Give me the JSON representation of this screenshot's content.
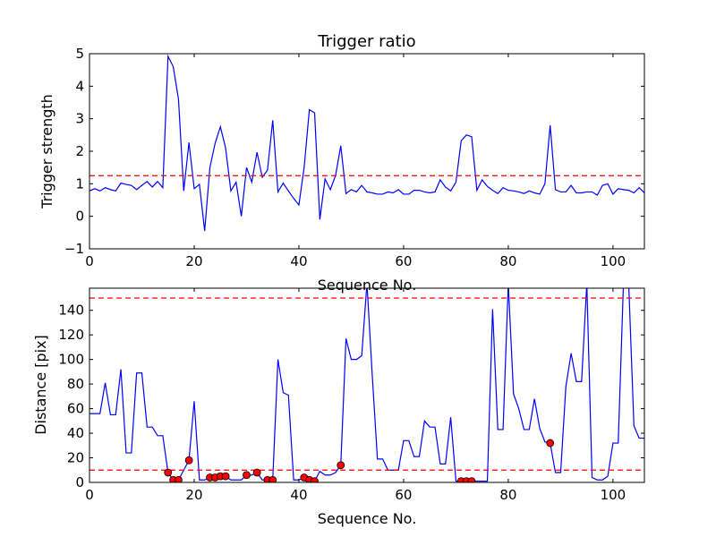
{
  "chart_data": [
    {
      "type": "line",
      "title": "Trigger ratio",
      "xlabel": "Sequence No.",
      "ylabel": "Trigger strength",
      "xlim": [
        0,
        106
      ],
      "ylim": [
        -1,
        5
      ],
      "xticks": [
        "0",
        "20",
        "40",
        "60",
        "80",
        "100"
      ],
      "yticks": [
        "−1",
        "0",
        "1",
        "2",
        "3",
        "4",
        "5"
      ],
      "grid": false,
      "series": [
        {
          "color": "#0000ff",
          "style": "solid",
          "x": [
            0,
            1,
            2,
            3,
            4,
            5,
            6,
            7,
            8,
            9,
            10,
            11,
            12,
            13,
            14,
            15,
            16,
            17,
            18,
            19,
            20,
            21,
            22,
            23,
            24,
            25,
            26,
            27,
            28,
            29,
            30,
            31,
            32,
            33,
            34,
            35,
            36,
            37,
            38,
            39,
            40,
            41,
            42,
            43,
            44,
            45,
            46,
            47,
            48,
            49,
            50,
            51,
            52,
            53,
            54,
            55,
            56,
            57,
            58,
            59,
            60,
            61,
            62,
            63,
            64,
            65,
            66,
            67,
            68,
            69,
            70,
            71,
            72,
            73,
            74,
            75,
            76,
            77,
            78,
            79,
            80,
            81,
            82,
            83,
            84,
            85,
            86,
            87,
            88,
            89,
            90,
            91,
            92,
            93,
            94,
            95,
            96,
            97,
            98,
            99,
            100,
            101,
            102,
            103,
            104,
            105,
            106
          ],
          "y": [
            0.78,
            0.85,
            0.78,
            0.88,
            0.82,
            0.78,
            1.02,
            0.98,
            0.95,
            0.82,
            0.95,
            1.07,
            0.9,
            1.07,
            0.88,
            4.92,
            4.6,
            3.6,
            0.78,
            2.27,
            0.85,
            0.98,
            -0.45,
            1.5,
            2.25,
            2.75,
            2.1,
            0.78,
            1.05,
            0.0,
            1.5,
            1.05,
            1.97,
            1.2,
            1.42,
            2.95,
            0.75,
            1.02,
            0.78,
            0.55,
            0.35,
            1.5,
            3.28,
            3.18,
            -0.1,
            1.15,
            0.82,
            1.25,
            2.17,
            0.7,
            0.82,
            0.75,
            0.95,
            0.75,
            0.72,
            0.68,
            0.68,
            0.75,
            0.72,
            0.82,
            0.68,
            0.68,
            0.8,
            0.8,
            0.75,
            0.72,
            0.75,
            1.12,
            0.9,
            0.78,
            1.05,
            2.32,
            2.5,
            2.45,
            0.8,
            1.12,
            0.92,
            0.8,
            0.7,
            0.88,
            0.8,
            0.78,
            0.75,
            0.7,
            0.78,
            0.72,
            0.68,
            1.0,
            2.8,
            0.82,
            0.75,
            0.75,
            0.95,
            0.72,
            0.72,
            0.75,
            0.75,
            0.65,
            0.95,
            1.0,
            0.68,
            0.85,
            0.82,
            0.8,
            0.72,
            0.88,
            0.72
          ]
        },
        {
          "color": "#ff0000",
          "style": "dashed",
          "x": [
            0,
            106
          ],
          "y": [
            1.25,
            1.25
          ]
        }
      ]
    },
    {
      "type": "line",
      "title": "",
      "xlabel": "Sequence No.",
      "ylabel": "Distance [pix]",
      "xlim": [
        0,
        106
      ],
      "ylim": [
        0,
        158
      ],
      "xticks": [
        "0",
        "20",
        "40",
        "60",
        "80",
        "100"
      ],
      "yticks": [
        "0",
        "20",
        "40",
        "60",
        "80",
        "100",
        "120",
        "140"
      ],
      "grid": false,
      "series": [
        {
          "color": "#0000ff",
          "style": "solid",
          "x": [
            0,
            1,
            2,
            3,
            4,
            5,
            6,
            7,
            8,
            9,
            10,
            11,
            12,
            13,
            14,
            15,
            16,
            17,
            18,
            19,
            20,
            21,
            22,
            23,
            24,
            25,
            26,
            27,
            28,
            29,
            30,
            31,
            32,
            33,
            34,
            35,
            36,
            37,
            38,
            39,
            40,
            41,
            42,
            43,
            44,
            45,
            46,
            47,
            48,
            49,
            50,
            51,
            52,
            53,
            54,
            55,
            56,
            57,
            58,
            59,
            60,
            61,
            62,
            63,
            64,
            65,
            66,
            67,
            68,
            69,
            70,
            71,
            72,
            73,
            74,
            75,
            76,
            77,
            78,
            79,
            80,
            81,
            82,
            83,
            84,
            85,
            86,
            87,
            88,
            89,
            90,
            91,
            92,
            93,
            94,
            95,
            96,
            97,
            98,
            99,
            100,
            101,
            102,
            103,
            104,
            105,
            106
          ],
          "y": [
            56,
            56,
            56,
            81,
            55,
            55,
            92,
            24,
            24,
            89,
            89,
            45,
            45,
            38,
            38,
            8,
            2,
            2,
            10,
            18,
            66,
            2,
            2,
            4,
            4,
            5,
            5,
            2,
            2,
            2,
            6,
            6,
            8,
            2,
            2,
            2,
            100,
            73,
            71,
            2,
            2,
            4,
            2,
            1,
            9,
            6,
            6,
            8,
            14,
            117,
            100,
            100,
            103,
            162,
            88,
            19,
            19,
            10,
            10,
            10,
            34,
            34,
            21,
            21,
            50,
            45,
            45,
            15,
            15,
            53,
            1,
            1,
            1,
            1,
            1,
            1,
            1,
            141,
            43,
            43,
            162,
            72,
            60,
            43,
            43,
            68,
            44,
            33,
            32,
            8,
            8,
            78,
            105,
            82,
            82,
            162,
            4,
            2,
            2,
            5,
            32,
            32,
            162,
            162,
            46,
            36,
            36
          ]
        },
        {
          "color": "#ff0000",
          "style": "dashed",
          "x": [
            0,
            106
          ],
          "y": [
            150,
            150
          ]
        },
        {
          "color": "#ff0000",
          "style": "dashed",
          "x": [
            0,
            106
          ],
          "y": [
            10,
            10
          ]
        },
        {
          "color": "#ff0000",
          "style": "markers",
          "x": [
            15,
            16,
            17,
            19,
            23,
            24,
            25,
            26,
            30,
            32,
            34,
            35,
            41,
            42,
            43,
            48,
            71,
            72,
            73,
            88
          ],
          "y": [
            8,
            2,
            2,
            18,
            4,
            4,
            5,
            5,
            6,
            8,
            2,
            2,
            4,
            2,
            1,
            14,
            1,
            1,
            1,
            32
          ]
        }
      ]
    }
  ]
}
